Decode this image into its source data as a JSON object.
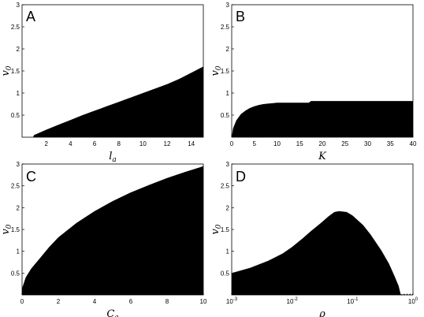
{
  "chart_data": [
    {
      "id": "A",
      "type": "area",
      "panel_label": "A",
      "xlabel": "l",
      "xlabel_sub": "a",
      "ylabel": "v",
      "ylabel_sub": "0",
      "xlim": [
        0,
        15
      ],
      "ylim": [
        0,
        3
      ],
      "xscale": "linear",
      "xticks": [
        2,
        4,
        6,
        8,
        10,
        12,
        14
      ],
      "yticks": [
        0.5,
        1,
        1.5,
        2,
        2.5,
        3
      ],
      "xtick_labels": [
        "2",
        "4",
        "6",
        "8",
        "10",
        "12",
        "14"
      ],
      "ytick_labels": [
        "0.5",
        "1",
        "1.5",
        "2",
        "2.5",
        "3"
      ],
      "fill_color": "#000000",
      "boundary": {
        "x": [
          0.9,
          1.0,
          2,
          3,
          4,
          5,
          6,
          7,
          8,
          9,
          10,
          11,
          12,
          13,
          14,
          15
        ],
        "y": [
          0.0,
          0.05,
          0.17,
          0.28,
          0.39,
          0.5,
          0.6,
          0.7,
          0.8,
          0.9,
          1.0,
          1.1,
          1.2,
          1.32,
          1.46,
          1.6
        ]
      }
    },
    {
      "id": "B",
      "type": "area",
      "panel_label": "B",
      "xlabel": "K",
      "xlabel_sub": "",
      "ylabel": "v",
      "ylabel_sub": "0",
      "xlim": [
        0,
        40
      ],
      "ylim": [
        0,
        3
      ],
      "xscale": "linear",
      "xticks": [
        0,
        5,
        10,
        15,
        20,
        25,
        30,
        35,
        40
      ],
      "yticks": [
        0.5,
        1,
        1.5,
        2,
        2.5,
        3
      ],
      "xtick_labels": [
        "0",
        "5",
        "10",
        "15",
        "20",
        "25",
        "30",
        "35",
        "40"
      ],
      "ytick_labels": [
        "0.5",
        "1",
        "1.5",
        "2",
        "2.5",
        "3"
      ],
      "fill_color": "#000000",
      "boundary": {
        "x": [
          0,
          0.3,
          1,
          2,
          3,
          4,
          5,
          6,
          7,
          8,
          9,
          10,
          14,
          17,
          17.5,
          20,
          25,
          30,
          35,
          40
        ],
        "y": [
          0.0,
          0.2,
          0.38,
          0.52,
          0.6,
          0.66,
          0.7,
          0.73,
          0.75,
          0.76,
          0.77,
          0.78,
          0.78,
          0.78,
          0.82,
          0.82,
          0.82,
          0.82,
          0.82,
          0.82
        ]
      }
    },
    {
      "id": "C",
      "type": "area",
      "panel_label": "C",
      "xlabel": "C",
      "xlabel_sub": "a",
      "ylabel": "v",
      "ylabel_sub": "0",
      "xlim": [
        0,
        10
      ],
      "ylim": [
        0,
        3
      ],
      "xscale": "linear",
      "xticks": [
        0,
        2,
        4,
        6,
        8,
        10
      ],
      "yticks": [
        0.5,
        1,
        1.5,
        2,
        2.5,
        3
      ],
      "xtick_labels": [
        "0",
        "2",
        "4",
        "6",
        "8",
        "10"
      ],
      "ytick_labels": [
        "0.5",
        "1",
        "1.5",
        "2",
        "2.5",
        "3"
      ],
      "fill_color": "#000000",
      "boundary": {
        "x": [
          0,
          0.2,
          0.5,
          1,
          1.5,
          2,
          3,
          4,
          5,
          6,
          7,
          8,
          9,
          10
        ],
        "y": [
          0.15,
          0.4,
          0.6,
          0.85,
          1.1,
          1.32,
          1.65,
          1.92,
          2.15,
          2.35,
          2.52,
          2.68,
          2.82,
          2.95
        ]
      }
    },
    {
      "id": "D",
      "type": "area",
      "panel_label": "D",
      "xlabel": "ρ",
      "xlabel_sub": "",
      "ylabel": "v",
      "ylabel_sub": "0",
      "xlim": [
        0.001,
        1
      ],
      "ylim": [
        0,
        3
      ],
      "xscale": "log",
      "xticks": [
        0.001,
        0.01,
        0.1,
        1
      ],
      "yticks": [
        0.5,
        1,
        1.5,
        2,
        2.5,
        3
      ],
      "xtick_labels": [
        "10-3",
        "10-2",
        "10-1",
        "100"
      ],
      "ytick_labels": [
        "0.5",
        "1",
        "1.5",
        "2",
        "2.5",
        "3"
      ],
      "fill_color": "#000000",
      "boundary": {
        "x": [
          0.001,
          0.002,
          0.004,
          0.007,
          0.01,
          0.015,
          0.02,
          0.03,
          0.04,
          0.05,
          0.06,
          0.08,
          0.1,
          0.15,
          0.2,
          0.3,
          0.4,
          0.5,
          0.58,
          0.63
        ],
        "y": [
          0.5,
          0.62,
          0.78,
          0.95,
          1.1,
          1.3,
          1.45,
          1.65,
          1.8,
          1.9,
          1.92,
          1.9,
          1.82,
          1.6,
          1.38,
          1.02,
          0.72,
          0.42,
          0.2,
          0.0
        ]
      }
    }
  ]
}
